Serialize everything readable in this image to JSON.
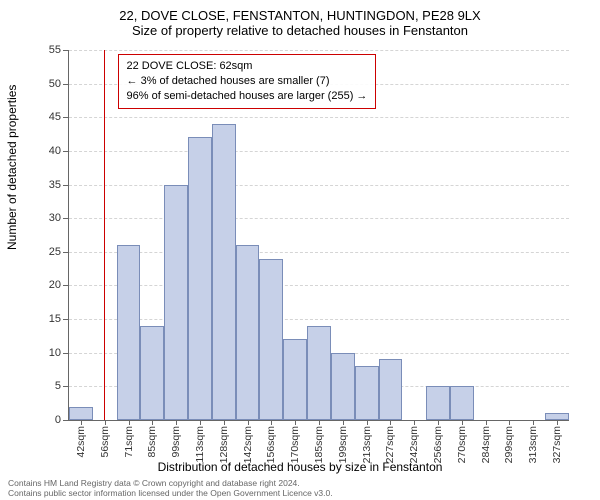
{
  "title_line1": "22, DOVE CLOSE, FENSTANTON, HUNTINGDON, PE28 9LX",
  "title_line2": "Size of property relative to detached houses in Fenstanton",
  "y_axis_title": "Number of detached properties",
  "x_axis_title": "Distribution of detached houses by size in Fenstanton",
  "ylim": [
    0,
    55
  ],
  "ytick_step": 5,
  "x_labels": [
    "42sqm",
    "56sqm",
    "71sqm",
    "85sqm",
    "99sqm",
    "113sqm",
    "128sqm",
    "142sqm",
    "156sqm",
    "170sqm",
    "185sqm",
    "199sqm",
    "213sqm",
    "227sqm",
    "242sqm",
    "256sqm",
    "270sqm",
    "284sqm",
    "299sqm",
    "313sqm",
    "327sqm"
  ],
  "bar_values": [
    2,
    0,
    26,
    14,
    35,
    42,
    44,
    26,
    24,
    12,
    14,
    10,
    8,
    9,
    0,
    5,
    5,
    0,
    0,
    0,
    1
  ],
  "bar_color": "#c6d0e8",
  "bar_border": "#7a8db8",
  "grid_color": "#d5d5d5",
  "ref_line_x_index": 1.45,
  "ref_line_color": "#cc0000",
  "annotation": {
    "line1": "22 DOVE CLOSE: 62sqm",
    "line2": "← 3% of detached houses are smaller (7)",
    "line3": "96% of semi-detached houses are larger (255) →"
  },
  "footer_line1": "Contains HM Land Registry data © Crown copyright and database right 2024.",
  "footer_line2": "Contains public sector information licensed under the Open Government Licence v3.0.",
  "label_fontsize": 11,
  "title_fontsize": 13
}
